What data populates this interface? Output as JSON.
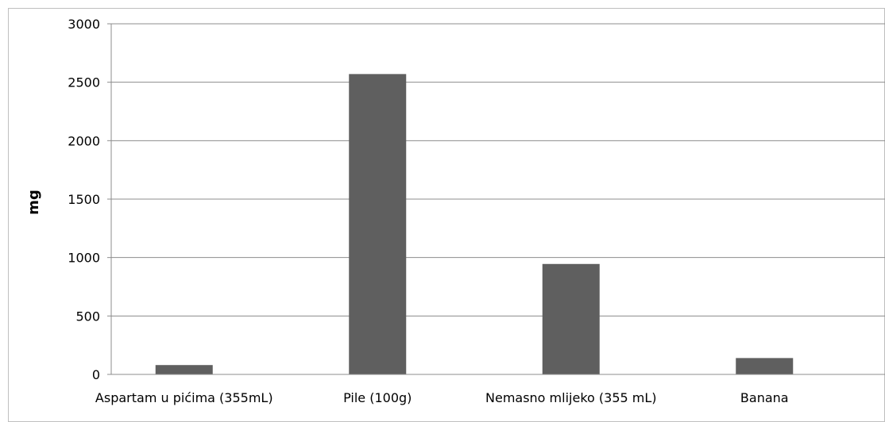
{
  "chart_data": {
    "type": "bar",
    "categories": [
      "Aspartam u pićima (355mL)",
      "Pile (100g)",
      "Nemasno mlijeko (355 mL)",
      "Banana"
    ],
    "values": [
      80,
      2570,
      945,
      140
    ],
    "title": "",
    "xlabel": "",
    "ylabel": "mg",
    "ylim": [
      0,
      3000
    ],
    "yticks": [
      "0",
      "500",
      "1000",
      "1500",
      "2000",
      "2500",
      "3000"
    ],
    "grid": true,
    "legend": "none",
    "bar_color": "#5f5f5f",
    "grid_color": "#8c8c8c",
    "frame_color": "#bfbfbf"
  }
}
